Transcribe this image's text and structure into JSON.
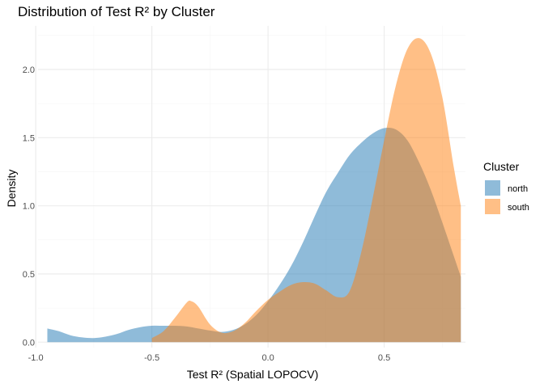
{
  "chart_data": {
    "type": "area",
    "title": "Distribution of Test R² by Cluster",
    "xlabel": "Test R² (Spatial LOPOCV)",
    "ylabel": "Density",
    "xlim": [
      -0.99,
      0.85
    ],
    "ylim": [
      -0.04,
      2.32
    ],
    "x_ticks": [
      -1.0,
      -0.5,
      0.0,
      0.5
    ],
    "x_tick_labels": [
      "-1.0",
      "-0.5",
      "0.0",
      "0.5"
    ],
    "y_ticks": [
      0.0,
      0.5,
      1.0,
      1.5,
      2.0
    ],
    "y_tick_labels": [
      "0.0",
      "0.5",
      "1.0",
      "1.5",
      "2.0"
    ],
    "grid": true,
    "legend": {
      "title": "Cluster",
      "position": "right",
      "entries": [
        "north",
        "south"
      ]
    },
    "series": [
      {
        "name": "north",
        "color": "#1f77b4",
        "opacity": 0.5,
        "x": [
          -0.95,
          -0.9,
          -0.85,
          -0.8,
          -0.75,
          -0.7,
          -0.65,
          -0.6,
          -0.55,
          -0.5,
          -0.45,
          -0.4,
          -0.35,
          -0.3,
          -0.25,
          -0.2,
          -0.15,
          -0.1,
          -0.05,
          0.0,
          0.05,
          0.1,
          0.15,
          0.2,
          0.25,
          0.3,
          0.35,
          0.4,
          0.45,
          0.5,
          0.55,
          0.6,
          0.65,
          0.7,
          0.75,
          0.8,
          0.83
        ],
        "y": [
          0.1,
          0.08,
          0.05,
          0.035,
          0.03,
          0.04,
          0.06,
          0.09,
          0.11,
          0.12,
          0.12,
          0.12,
          0.115,
          0.1,
          0.085,
          0.075,
          0.09,
          0.13,
          0.2,
          0.3,
          0.42,
          0.56,
          0.73,
          0.92,
          1.1,
          1.24,
          1.37,
          1.46,
          1.53,
          1.57,
          1.56,
          1.48,
          1.32,
          1.12,
          0.88,
          0.63,
          0.48
        ]
      },
      {
        "name": "south",
        "color": "#ff7f0e",
        "opacity": 0.5,
        "x": [
          -0.5,
          -0.45,
          -0.4,
          -0.35,
          -0.33,
          -0.3,
          -0.25,
          -0.2,
          -0.15,
          -0.1,
          -0.05,
          0.0,
          0.05,
          0.1,
          0.15,
          0.2,
          0.25,
          0.3,
          0.35,
          0.4,
          0.45,
          0.5,
          0.55,
          0.6,
          0.65,
          0.7,
          0.75,
          0.8,
          0.83
        ],
        "y": [
          0.03,
          0.08,
          0.18,
          0.29,
          0.3,
          0.26,
          0.13,
          0.07,
          0.08,
          0.14,
          0.23,
          0.31,
          0.37,
          0.42,
          0.44,
          0.43,
          0.38,
          0.33,
          0.37,
          0.65,
          1.05,
          1.48,
          1.88,
          2.15,
          2.23,
          2.12,
          1.8,
          1.28,
          1.0
        ]
      }
    ]
  }
}
